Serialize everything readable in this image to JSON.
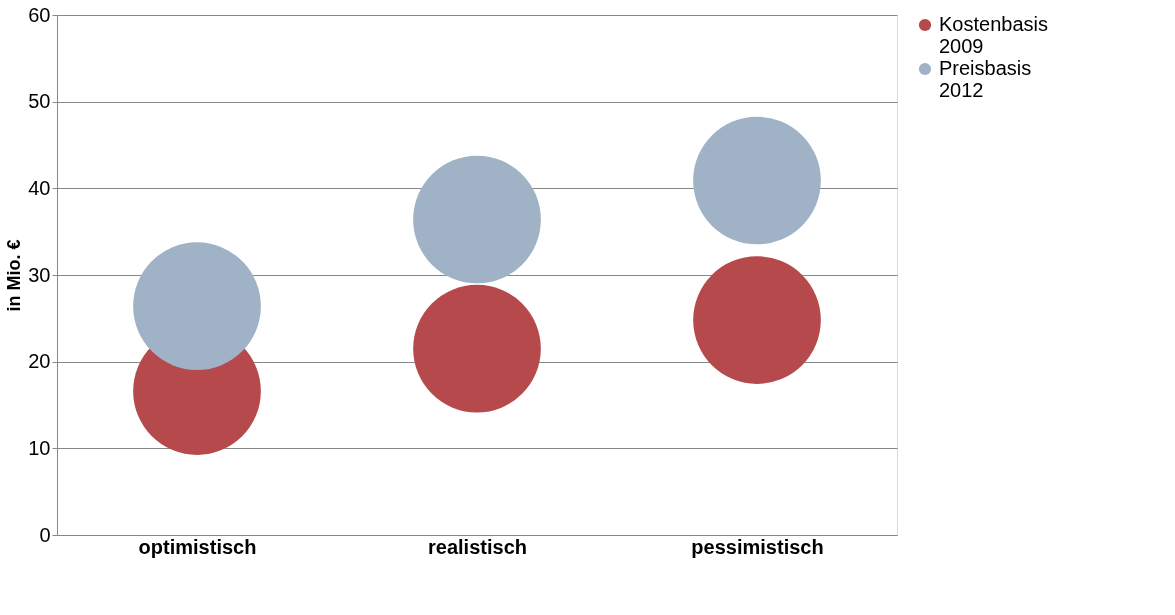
{
  "chart_data": {
    "type": "bubble",
    "ylabel": "in Mio. €",
    "categories": [
      "optimistisch",
      "realistisch",
      "pessimistisch"
    ],
    "series": [
      {
        "name": "Kostenbasis 2009",
        "color": "#b5494b",
        "values": [
          16.6,
          21.5,
          24.8
        ],
        "sizes": [
          1,
          1,
          1
        ]
      },
      {
        "name": "Preisbasis 2012",
        "color": "#9fb2c6",
        "values": [
          26.4,
          36.4,
          40.9
        ],
        "sizes": [
          1,
          1,
          1
        ]
      }
    ],
    "ylim": [
      0,
      60
    ],
    "yticks": [
      0,
      10,
      20,
      30,
      40,
      50,
      60
    ],
    "grid": "y",
    "legend": "right"
  }
}
